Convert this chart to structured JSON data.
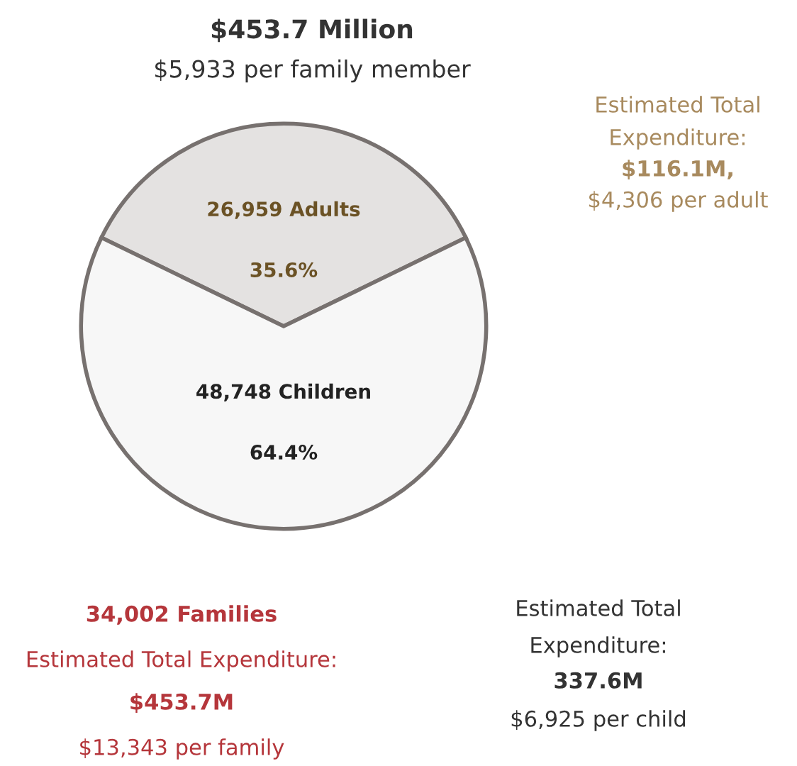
{
  "chart_data": {
    "type": "pie",
    "categories": [
      "26,959 Adults",
      "48,748 Children"
    ],
    "values": [
      35.6,
      64.4
    ],
    "colors": [
      "#e4e2e1",
      "#f7f7f7"
    ],
    "value_labels": [
      "35.6%",
      "64.4%"
    ],
    "legend": false,
    "annotations": [
      "$453.7 Million",
      "$5,933 per family member",
      "Estimated Total",
      "Expenditure:",
      "$116.1M,",
      "$4,306 per adult",
      "34,002 Families",
      "Estimated Total Expenditure:",
      "$453.7M",
      "$13,343 per family",
      "Estimated Total",
      "Expenditure:",
      "337.6M",
      "$6,925 per child"
    ]
  }
}
